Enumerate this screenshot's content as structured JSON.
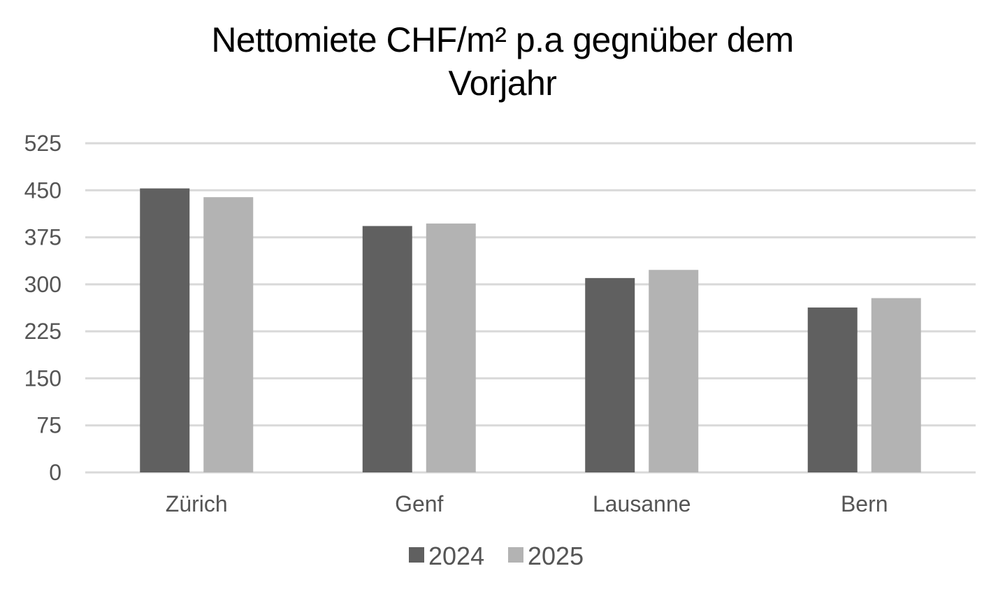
{
  "chart_data": {
    "type": "bar",
    "title_lines": [
      "Nettomiete CHF/m² p.a gegnüber dem",
      "Vorjahr"
    ],
    "categories": [
      "Zürich",
      "Genf",
      "Lausanne",
      "Bern"
    ],
    "series": [
      {
        "name": "2024",
        "values": [
          453,
          393,
          310,
          263
        ],
        "color": "#606060"
      },
      {
        "name": "2025",
        "values": [
          439,
          397,
          323,
          278
        ],
        "color": "#b3b3b3"
      }
    ],
    "ylim": [
      0,
      525
    ],
    "yticks": [
      0,
      75,
      150,
      225,
      300,
      375,
      450,
      525
    ],
    "xlabel": "",
    "ylabel": "",
    "grid": true,
    "legend_position": "bottom",
    "colors": {
      "gridline": "#d9d9d9",
      "tick_text": "#555555"
    }
  }
}
